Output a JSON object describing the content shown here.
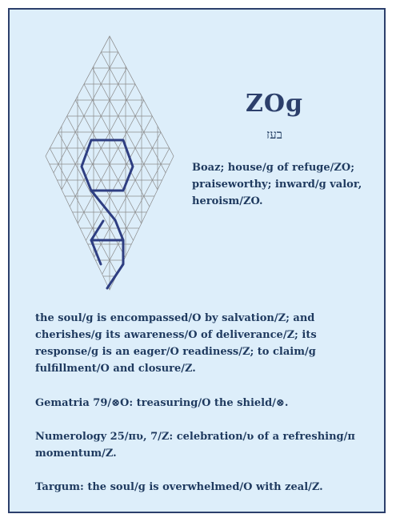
{
  "heading": {
    "glyphs": "ZOɡ",
    "hebrew": "בעז"
  },
  "definition": "Boaz; house/ɡ of refuge/ZO; praiseworthy; inward/ɡ valor, heroism/ZO.",
  "paragraphs": [
    "the soul/ɡ is encompassed/O by salvation/Z; and cherishes/ɡ its awareness/O of deliverance/Z; its response/ɡ is an eager/O readiness/Z; to claim/ɡ fulfillment/O and closure/Z.",
    "Gematria 79/⊗O: treasuring/O the shield/⊗.",
    "Numerology 25/πʋ, 7/Z: celebration/ʋ of a refreshing/π momentum/Z.",
    "Targum: the soul/ɡ is overwhelmed/O with zeal/Z."
  ],
  "colors": {
    "background": "#ddeefa",
    "border": "#2c3f6b",
    "text": "#1f3a5f",
    "lattice_line": "#8c8c8c",
    "path": "#2e3e82"
  }
}
